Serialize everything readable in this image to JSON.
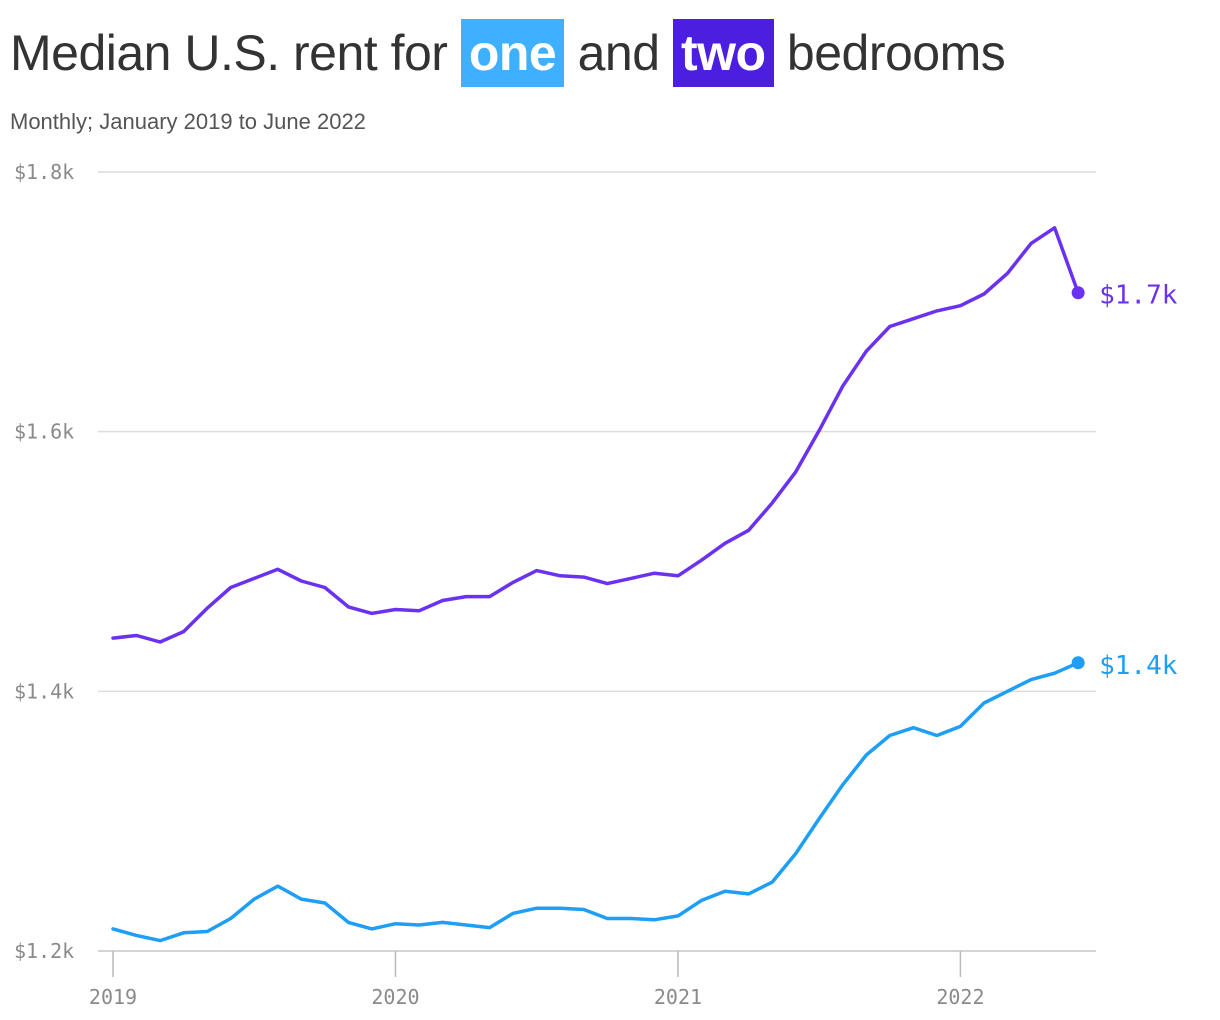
{
  "chart_data": {
    "type": "line",
    "title_parts": {
      "before": "Median U.S. rent for ",
      "one": "one",
      "middle": " and ",
      "two": "two",
      "after": " bedrooms"
    },
    "subtitle": "Monthly; January 2019 to June 2022",
    "x_start": "2019-01",
    "x_tick_labels": [
      "2019",
      "2020",
      "2021",
      "2022"
    ],
    "y_tick_labels": [
      "$1.8k",
      "$1.6k",
      "$1.4k",
      "$1.2k"
    ],
    "y_tick_values": [
      1800,
      1600,
      1400,
      1200
    ],
    "ylim": [
      1200,
      1800
    ],
    "grid": true,
    "series": [
      {
        "key": "two",
        "color": "#6a32f0",
        "end_label": "$1.7k",
        "values": [
          1441,
          1443,
          1438,
          1446,
          1464,
          1480,
          1487,
          1494,
          1485,
          1480,
          1465,
          1460,
          1463,
          1462,
          1470,
          1473,
          1473,
          1484,
          1493,
          1489,
          1488,
          1483,
          1487,
          1491,
          1489,
          1501,
          1514,
          1524,
          1545,
          1569,
          1601,
          1635,
          1662,
          1681,
          1687,
          1693,
          1697,
          1706,
          1722,
          1745,
          1757,
          1707
        ]
      },
      {
        "key": "one",
        "color": "#1e9ef7",
        "end_label": "$1.4k",
        "values": [
          1217,
          1212,
          1208,
          1214,
          1215,
          1225,
          1240,
          1250,
          1240,
          1237,
          1222,
          1217,
          1221,
          1220,
          1222,
          1220,
          1218,
          1229,
          1233,
          1233,
          1232,
          1225,
          1225,
          1224,
          1227,
          1239,
          1246,
          1244,
          1253,
          1275,
          1302,
          1328,
          1351,
          1366,
          1372,
          1366,
          1373,
          1391,
          1400,
          1409,
          1414,
          1422
        ]
      }
    ]
  }
}
